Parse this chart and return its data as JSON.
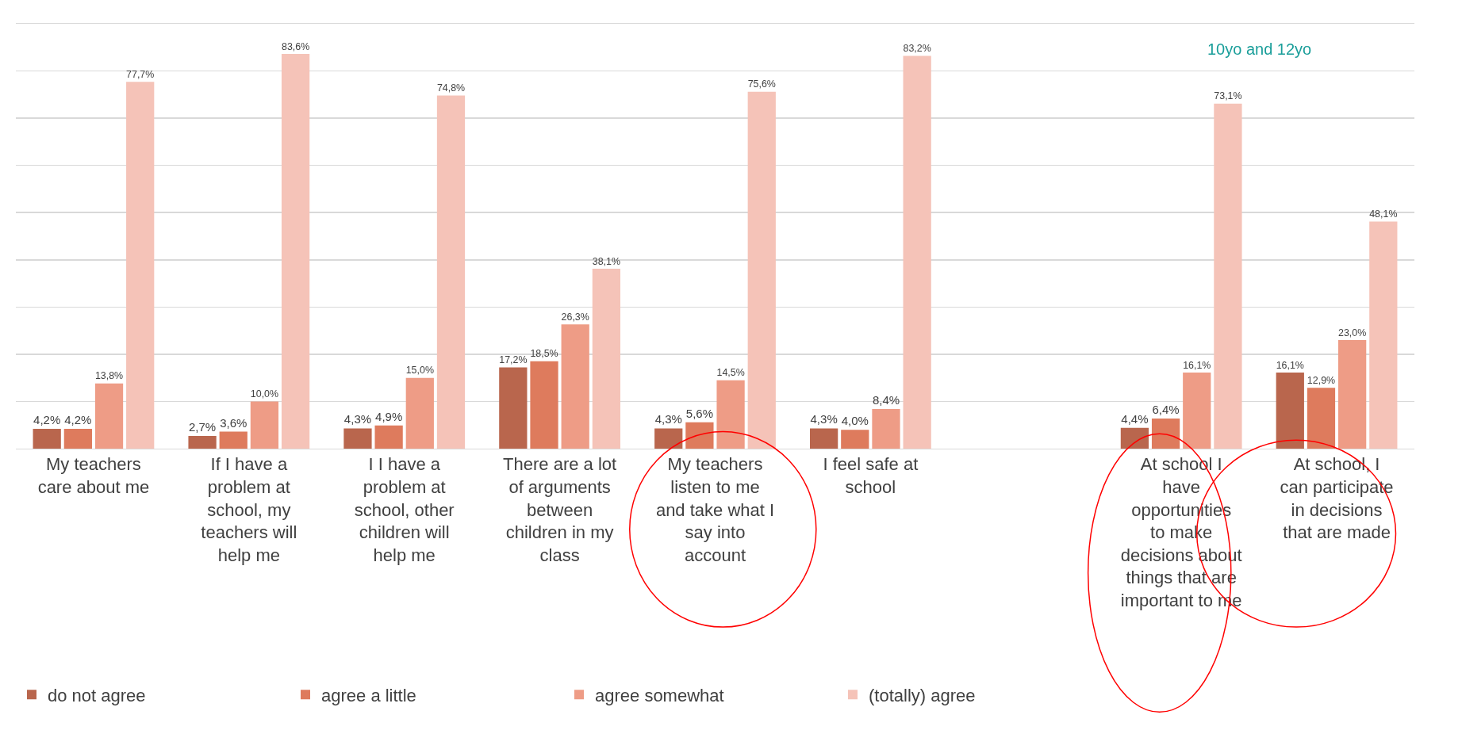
{
  "chart_data": {
    "type": "bar",
    "categories": [
      "My teachers care about me",
      "If I have a problem at school, my teachers will help me",
      "I I have a problem at school, other children will help me",
      "There are a lot of arguments between children in my class",
      "My teachers listen to me and take what I say into account",
      "I feel safe at school",
      null,
      "At school I have opportunities to make decisions about things that are important to me",
      "At school, I can participate in decisions that are made"
    ],
    "series": [
      {
        "name": "do not agree",
        "color": "#b9664d",
        "values": [
          4.2,
          2.7,
          4.3,
          17.2,
          4.3,
          4.3,
          null,
          4.4,
          16.1
        ],
        "value_labels": [
          "4,2%",
          "2,7%",
          "4,3%",
          "17,2%",
          "4,3%",
          "4,3%",
          null,
          "4,4%",
          "16,1%"
        ]
      },
      {
        "name": "agree a little",
        "color": "#de7b5d",
        "values": [
          4.2,
          3.6,
          4.9,
          18.5,
          5.6,
          4.0,
          null,
          6.4,
          12.9
        ],
        "value_labels": [
          "4,2%",
          "3,6%",
          "4,9%",
          "18,5%",
          "5,6%",
          "4,0%",
          null,
          "6,4%",
          "12,9%"
        ]
      },
      {
        "name": "agree somewhat",
        "color": "#ee9c86",
        "values": [
          13.8,
          10.0,
          15.0,
          26.3,
          14.5,
          8.4,
          null,
          16.1,
          23.0
        ],
        "value_labels": [
          "13,8%",
          "10,0%",
          "15,0%",
          "26,3%",
          "14,5%",
          "8,4%",
          null,
          "16,1%",
          "23,0%"
        ]
      },
      {
        "name": "(totally) agree",
        "color": "#f5c3b8",
        "values": [
          77.7,
          83.6,
          74.8,
          38.1,
          75.6,
          83.2,
          null,
          73.1,
          48.1
        ],
        "value_labels": [
          "77,7%",
          "83,6%",
          "74,8%",
          "38,1%",
          "75,6%",
          "83,2%",
          null,
          "73,1%",
          "48,1%"
        ]
      }
    ],
    "ylim": [
      0,
      90
    ],
    "yticks": [
      {
        "value": 0,
        "label": null
      },
      {
        "value": 10,
        "label": null
      },
      {
        "value": 20,
        "label": null
      },
      {
        "value": 30,
        "label": null
      },
      {
        "value": 40,
        "label": null
      },
      {
        "value": 50,
        "label": null
      },
      {
        "value": 60,
        "label": null
      },
      {
        "value": 70,
        "label": null
      },
      {
        "value": 80,
        "label": null
      },
      {
        "value": 90,
        "label": null
      }
    ],
    "tick_labels": "x",
    "grid": "y",
    "legend": "bottom left",
    "annotations": [
      "10yo and 12yo"
    ]
  }
}
